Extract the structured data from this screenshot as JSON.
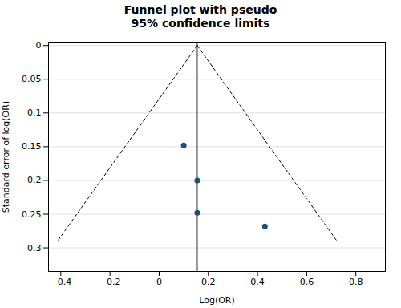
{
  "chart_data": {
    "type": "scatter",
    "title": "Funnel plot with pseudo\n95% confidence limits",
    "xlabel": "Log(OR)",
    "ylabel": "Standard error of log(OR)",
    "x": [
      0.1,
      0.155,
      0.155,
      0.43
    ],
    "values": [
      0.148,
      0.2,
      0.248,
      0.268
    ],
    "color": "#1c4f72",
    "series": [
      {
        "type": "line",
        "line_style": "dashed",
        "color": "#000000",
        "x": [
          0.155,
          -0.4134
        ],
        "values": [
          0,
          0.29
        ]
      },
      {
        "type": "line",
        "line_style": "dashed",
        "color": "#000000",
        "x": [
          0.155,
          0.7234
        ],
        "values": [
          0,
          0.29
        ]
      }
    ],
    "vline": {
      "x": 0.155,
      "color": "#333333"
    },
    "xlim": [
      -0.45,
      0.92
    ],
    "ylim": [
      0.335,
      -0.005
    ],
    "xticks": [
      {
        "value": -0.4,
        "label": "−0.4"
      },
      {
        "value": -0.2,
        "label": "−0.2"
      },
      0,
      0.2,
      0.4,
      0.6,
      0.8
    ],
    "yticks": [
      0,
      0.05,
      0.1,
      0.15,
      0.2,
      0.25,
      0.3
    ],
    "grid": "y"
  }
}
